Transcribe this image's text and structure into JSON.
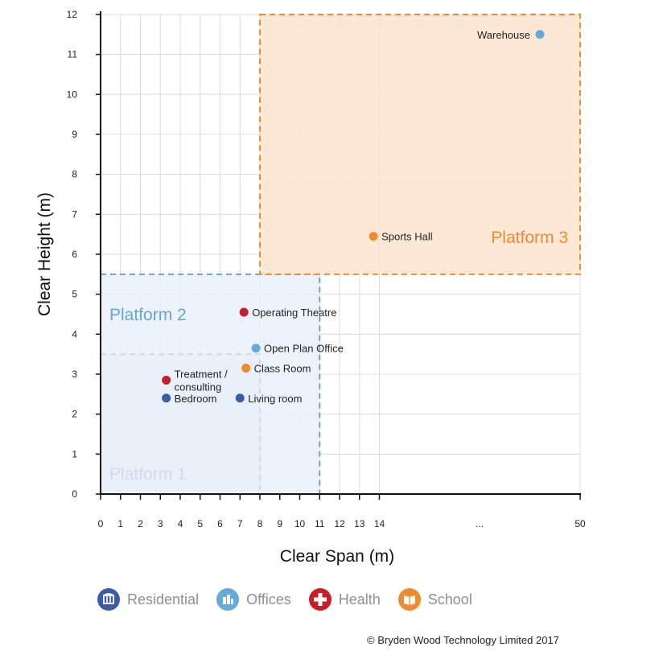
{
  "chart_data": {
    "type": "scatter",
    "xlabel": "Clear Span (m)",
    "ylabel": "Clear Height (m)",
    "x_ticks": [
      "0",
      "1",
      "2",
      "3",
      "4",
      "5",
      "6",
      "7",
      "8",
      "9",
      "10",
      "11",
      "12",
      "13",
      "14",
      "...",
      "50"
    ],
    "y_ticks": [
      "0",
      "1",
      "2",
      "3",
      "4",
      "5",
      "6",
      "7",
      "8",
      "9",
      "10",
      "11",
      "12"
    ],
    "ylim": [
      0,
      12
    ],
    "grid": true,
    "x_scale": "piecewise: 0 to 14 linear, break (...), 50",
    "platforms": [
      {
        "name": "Platform 1",
        "span_max": 8,
        "height_max": 3.5,
        "color": "#3b5ba9",
        "fill": "#e4e7f3"
      },
      {
        "name": "Platform 2",
        "span_max": 11,
        "height_max": 5.5,
        "color": "#5fa8dc",
        "fill": "#eaf1fa"
      },
      {
        "name": "Platform 3",
        "span_min": 8,
        "span_max": 50,
        "height_min": 5.5,
        "height_max": 12,
        "color": "#f08a2e",
        "fill": "#fde4cf"
      }
    ],
    "series": [
      {
        "name": "Residential",
        "color": "#3d5ca8",
        "points": [
          {
            "label": "Bedroom",
            "x": 3.3,
            "y": 2.4
          },
          {
            "label": "Living room",
            "x": 7.0,
            "y": 2.4
          }
        ]
      },
      {
        "name": "Offices",
        "color": "#64aadd",
        "points": [
          {
            "label": "Open Plan Office",
            "x": 7.8,
            "y": 3.65
          },
          {
            "label": "Warehouse",
            "x": 48,
            "y": 11.5
          }
        ]
      },
      {
        "name": "Health",
        "color": "#c81e2a",
        "points": [
          {
            "label": "Treatment / consulting",
            "x": 3.3,
            "y": 2.85
          },
          {
            "label": "Operating Theatre",
            "x": 7.2,
            "y": 4.55
          }
        ]
      },
      {
        "name": "School",
        "color": "#f08a2e",
        "points": [
          {
            "label": "Class Room",
            "x": 7.3,
            "y": 3.15
          },
          {
            "label": "Sports Hall",
            "x": 13.7,
            "y": 6.45
          }
        ]
      }
    ],
    "legend": [
      {
        "name": "Residential",
        "color": "#3d5ca8",
        "icon": "residential-icon"
      },
      {
        "name": "Offices",
        "color": "#64aadd",
        "icon": "offices-icon"
      },
      {
        "name": "Health",
        "color": "#c81e2a",
        "icon": "health-cross-icon"
      },
      {
        "name": "School",
        "color": "#f08a2e",
        "icon": "school-book-icon"
      }
    ]
  },
  "copyright": "© Bryden Wood Technology Limited 2017"
}
